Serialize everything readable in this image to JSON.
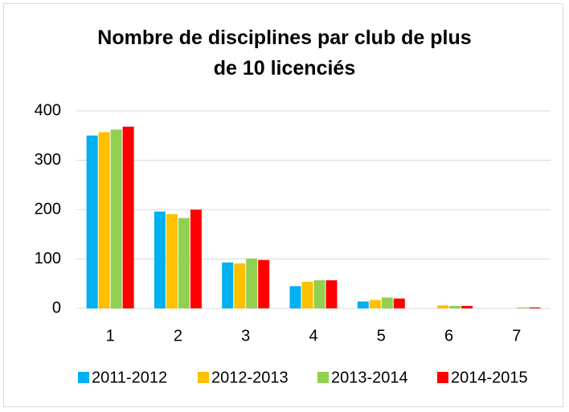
{
  "chart_data": {
    "type": "bar",
    "title": "Nombre de disciplines par club de plus\nde 10 licenciés",
    "categories": [
      "1",
      "2",
      "3",
      "4",
      "5",
      "6",
      "7"
    ],
    "series": [
      {
        "name": "2011-2012",
        "color": "#00b0f0",
        "values": [
          350,
          196,
          93,
          45,
          14,
          0,
          0
        ]
      },
      {
        "name": "2012-2013",
        "color": "#ffc000",
        "values": [
          357,
          191,
          91,
          54,
          17,
          6,
          0
        ]
      },
      {
        "name": "2013-2014",
        "color": "#92d050",
        "values": [
          362,
          183,
          101,
          57,
          22,
          5,
          2
        ]
      },
      {
        "name": "2014-2015",
        "color": "#ff0000",
        "values": [
          368,
          200,
          98,
          57,
          20,
          5,
          2
        ]
      }
    ],
    "ylim": [
      0,
      400
    ],
    "yticks": [
      0,
      100,
      200,
      300,
      400
    ],
    "grid": true,
    "legend": "bottom"
  }
}
